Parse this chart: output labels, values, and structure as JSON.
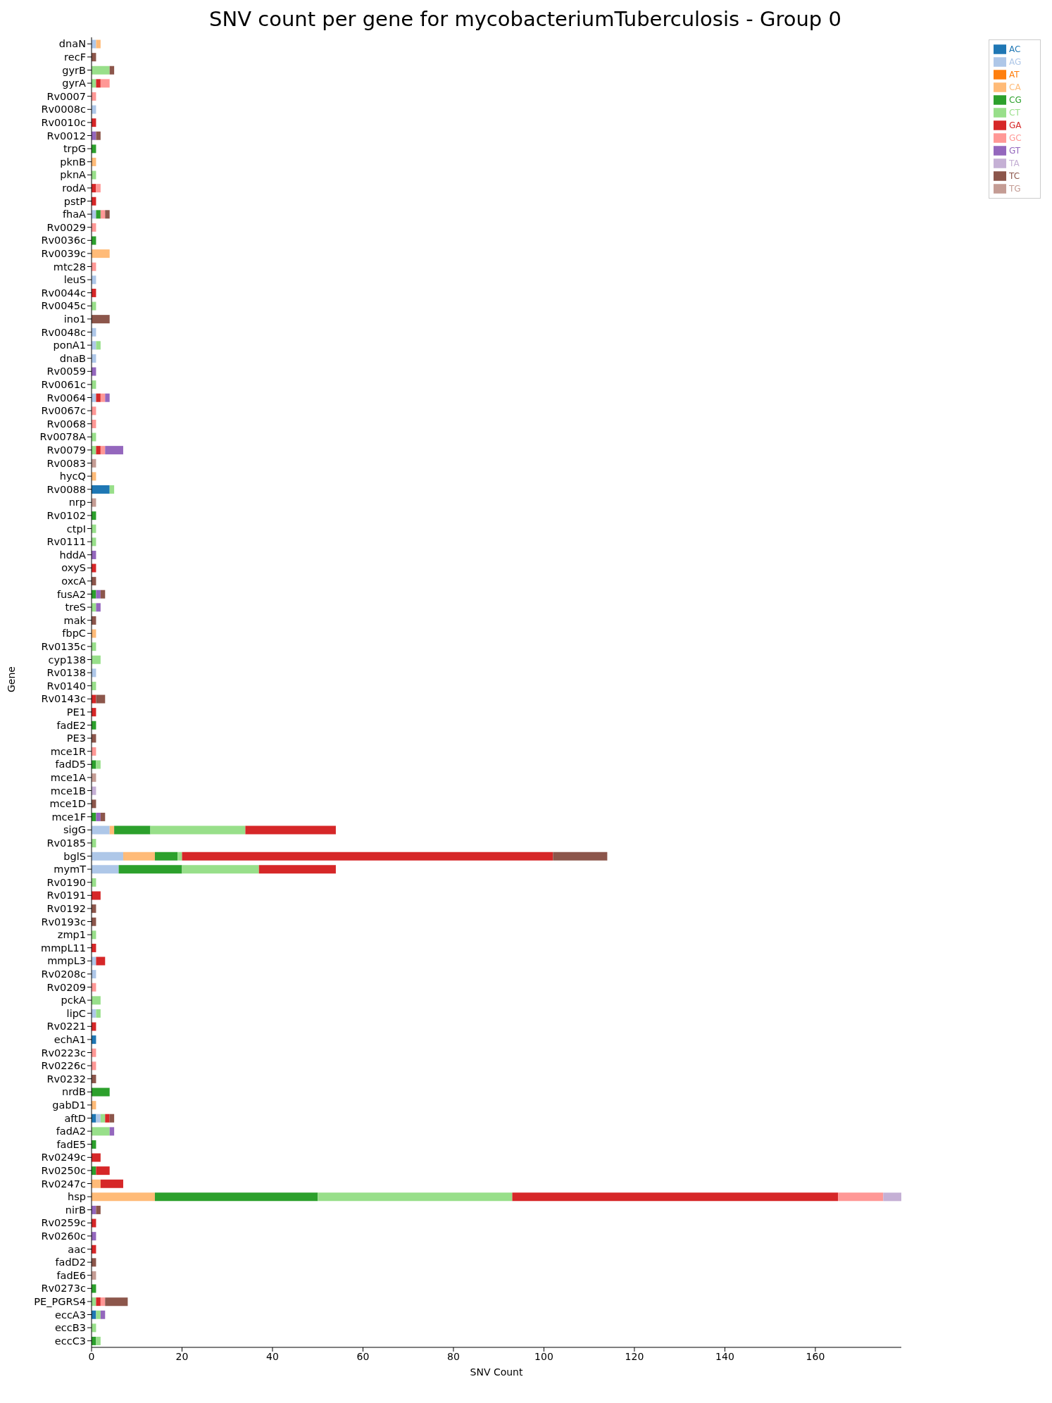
{
  "chart_data": {
    "type": "bar",
    "orientation": "horizontal",
    "stacked": true,
    "title": "SNV count per gene for mycobacteriumTuberculosis - Group 0",
    "xlabel": "SNV Count",
    "ylabel": "Gene",
    "legend": "top right",
    "xlim": [
      0,
      179
    ],
    "xticks": [
      0,
      20,
      40,
      60,
      80,
      100,
      120,
      140,
      160
    ],
    "categories": [
      "dnaN",
      "recF",
      "gyrB",
      "gyrA",
      "Rv0007",
      "Rv0008c",
      "Rv0010c",
      "Rv0012",
      "trpG",
      "pknB",
      "pknA",
      "rodA",
      "pstP",
      "fhaA",
      "Rv0029",
      "Rv0036c",
      "Rv0039c",
      "mtc28",
      "leuS",
      "Rv0044c",
      "Rv0045c",
      "ino1",
      "Rv0048c",
      "ponA1",
      "dnaB",
      "Rv0059",
      "Rv0061c",
      "Rv0064",
      "Rv0067c",
      "Rv0068",
      "Rv0078A",
      "Rv0079",
      "Rv0083",
      "hycQ",
      "Rv0088",
      "nrp",
      "Rv0102",
      "ctpI",
      "Rv0111",
      "hddA",
      "oxyS",
      "oxcA",
      "fusA2",
      "treS",
      "mak",
      "fbpC",
      "Rv0135c",
      "cyp138",
      "Rv0138",
      "Rv0140",
      "Rv0143c",
      "PE1",
      "fadE2",
      "PE3",
      "mce1R",
      "fadD5",
      "mce1A",
      "mce1B",
      "mce1D",
      "mce1F",
      "sigG",
      "Rv0185",
      "bglS",
      "mymT",
      "Rv0190",
      "Rv0191",
      "Rv0192",
      "Rv0193c",
      "zmp1",
      "mmpL11",
      "mmpL3",
      "Rv0208c",
      "Rv0209",
      "pckA",
      "lipC",
      "Rv0221",
      "echA1",
      "Rv0223c",
      "Rv0226c",
      "Rv0232",
      "nrdB",
      "gabD1",
      "aftD",
      "fadA2",
      "fadE5",
      "Rv0249c",
      "Rv0250c",
      "Rv0247c",
      "hsp",
      "nirB",
      "Rv0259c",
      "Rv0260c",
      "aac",
      "fadD2",
      "fadE6",
      "Rv0273c",
      "PE_PGRS4",
      "eccA3",
      "eccB3",
      "eccC3"
    ],
    "series": [
      {
        "name": "AC",
        "color": "#1f77b4",
        "values": [
          0,
          0,
          0,
          0,
          0,
          0,
          0,
          0,
          0,
          0,
          0,
          0,
          0,
          0,
          0,
          0,
          0,
          0,
          0,
          0,
          0,
          0,
          0,
          0,
          0,
          0,
          0,
          0,
          0,
          0,
          0,
          0,
          0,
          0,
          4,
          0,
          0,
          0,
          0,
          0,
          0,
          0,
          0,
          0,
          0,
          0,
          0,
          0,
          0,
          0,
          0,
          0,
          0,
          0,
          0,
          0,
          0,
          0,
          0,
          0,
          0,
          0,
          0,
          0,
          0,
          0,
          0,
          0,
          0,
          0,
          0,
          0,
          0,
          0,
          0,
          0,
          1,
          0,
          0,
          0,
          0,
          0,
          1,
          0,
          0,
          0,
          0,
          0,
          0,
          0,
          0,
          0,
          0,
          0,
          0,
          0,
          0,
          1,
          0,
          0
        ]
      },
      {
        "name": "AG",
        "color": "#aec7e8",
        "values": [
          1,
          0,
          0,
          0,
          0,
          1,
          0,
          0,
          0,
          0,
          0,
          0,
          0,
          1,
          0,
          0,
          0,
          0,
          1,
          0,
          0,
          0,
          1,
          1,
          1,
          0,
          0,
          1,
          0,
          0,
          0,
          0,
          0,
          0,
          0,
          0,
          0,
          0,
          0,
          0,
          0,
          0,
          0,
          0,
          0,
          0,
          0,
          0,
          1,
          0,
          0,
          0,
          0,
          0,
          0,
          0,
          0,
          0,
          0,
          0,
          4,
          0,
          7,
          6,
          0,
          0,
          0,
          0,
          0,
          0,
          1,
          1,
          0,
          0,
          1,
          0,
          0,
          0,
          0,
          0,
          0,
          0,
          1,
          0,
          0,
          0,
          0,
          0,
          0,
          0,
          0,
          0,
          0,
          0,
          0,
          0,
          0,
          0,
          0,
          0
        ]
      },
      {
        "name": "AT",
        "color": "#ff7f0e",
        "values": [
          0,
          0,
          0,
          0,
          0,
          0,
          0,
          0,
          0,
          0,
          0,
          0,
          0,
          0,
          0,
          0,
          0,
          0,
          0,
          0,
          0,
          0,
          0,
          0,
          0,
          0,
          0,
          0,
          0,
          0,
          0,
          0,
          0,
          0,
          0,
          0,
          0,
          0,
          0,
          0,
          0,
          0,
          0,
          0,
          0,
          0,
          0,
          0,
          0,
          0,
          0,
          0,
          0,
          0,
          0,
          0,
          0,
          0,
          0,
          0,
          0,
          0,
          0,
          0,
          0,
          0,
          0,
          0,
          0,
          0,
          0,
          0,
          0,
          0,
          0,
          0,
          0,
          0,
          0,
          0,
          0,
          0,
          0,
          0,
          0,
          0,
          0,
          0,
          0,
          0,
          0,
          0,
          0,
          0,
          0,
          0,
          0,
          0,
          0,
          0
        ]
      },
      {
        "name": "CA",
        "color": "#ffbb78",
        "values": [
          1,
          0,
          0,
          0,
          0,
          0,
          0,
          0,
          0,
          1,
          0,
          0,
          0,
          0,
          0,
          0,
          4,
          0,
          0,
          0,
          0,
          0,
          0,
          0,
          0,
          0,
          0,
          0,
          0,
          0,
          0,
          0,
          0,
          1,
          0,
          0,
          0,
          0,
          0,
          0,
          0,
          0,
          0,
          0,
          0,
          1,
          0,
          0,
          0,
          0,
          0,
          0,
          0,
          0,
          0,
          0,
          0,
          0,
          0,
          0,
          1,
          0,
          7,
          0,
          0,
          0,
          0,
          0,
          0,
          0,
          0,
          0,
          0,
          0,
          0,
          0,
          0,
          0,
          0,
          0,
          0,
          1,
          0,
          0,
          0,
          0,
          0,
          2,
          14,
          0,
          0,
          0,
          0,
          0,
          0,
          0,
          0,
          0,
          0,
          0
        ]
      },
      {
        "name": "CG",
        "color": "#2ca02c",
        "values": [
          0,
          0,
          0,
          0,
          0,
          0,
          0,
          0,
          1,
          0,
          0,
          0,
          0,
          1,
          0,
          1,
          0,
          0,
          0,
          0,
          0,
          0,
          0,
          0,
          0,
          0,
          0,
          0,
          0,
          0,
          0,
          0,
          0,
          0,
          0,
          0,
          1,
          0,
          0,
          0,
          0,
          0,
          1,
          0,
          0,
          0,
          0,
          0,
          0,
          0,
          0,
          0,
          1,
          0,
          0,
          1,
          0,
          0,
          0,
          1,
          8,
          0,
          5,
          14,
          0,
          0,
          0,
          0,
          0,
          0,
          0,
          0,
          0,
          0,
          0,
          0,
          0,
          0,
          0,
          0,
          4,
          0,
          0,
          0,
          1,
          0,
          1,
          0,
          36,
          0,
          0,
          0,
          0,
          0,
          0,
          1,
          0,
          0,
          0,
          1
        ]
      },
      {
        "name": "CT",
        "color": "#98df8a",
        "values": [
          0,
          0,
          4,
          1,
          0,
          0,
          0,
          0,
          0,
          0,
          1,
          0,
          0,
          0,
          0,
          0,
          0,
          0,
          0,
          0,
          1,
          0,
          0,
          1,
          0,
          0,
          1,
          0,
          0,
          0,
          1,
          1,
          0,
          0,
          1,
          0,
          0,
          1,
          1,
          0,
          0,
          0,
          0,
          1,
          0,
          0,
          1,
          2,
          0,
          1,
          0,
          0,
          0,
          0,
          0,
          1,
          0,
          0,
          0,
          0,
          21,
          1,
          1,
          17,
          1,
          0,
          0,
          0,
          1,
          0,
          0,
          0,
          0,
          2,
          1,
          0,
          0,
          0,
          0,
          0,
          0,
          0,
          1,
          4,
          0,
          0,
          0,
          0,
          43,
          0,
          0,
          0,
          0,
          0,
          0,
          0,
          1,
          1,
          1,
          1
        ]
      },
      {
        "name": "GA",
        "color": "#d62728",
        "values": [
          0,
          0,
          0,
          1,
          0,
          0,
          1,
          0,
          0,
          0,
          0,
          1,
          1,
          0,
          0,
          0,
          0,
          0,
          0,
          1,
          0,
          0,
          0,
          0,
          0,
          0,
          0,
          1,
          0,
          0,
          0,
          1,
          0,
          0,
          0,
          0,
          0,
          0,
          0,
          0,
          1,
          0,
          0,
          0,
          0,
          0,
          0,
          0,
          0,
          0,
          1,
          1,
          0,
          0,
          0,
          0,
          0,
          0,
          0,
          0,
          20,
          0,
          82,
          17,
          0,
          2,
          0,
          0,
          0,
          1,
          2,
          0,
          0,
          0,
          0,
          1,
          0,
          0,
          0,
          0,
          0,
          0,
          1,
          0,
          0,
          2,
          3,
          5,
          72,
          0,
          1,
          0,
          1,
          0,
          0,
          0,
          1,
          0,
          0,
          0
        ]
      },
      {
        "name": "GC",
        "color": "#ff9896",
        "values": [
          0,
          0,
          0,
          2,
          1,
          0,
          0,
          0,
          0,
          0,
          0,
          1,
          0,
          1,
          1,
          0,
          0,
          1,
          0,
          0,
          0,
          0,
          0,
          0,
          0,
          0,
          0,
          1,
          1,
          1,
          0,
          1,
          0,
          0,
          0,
          0,
          0,
          0,
          0,
          0,
          0,
          0,
          0,
          0,
          0,
          0,
          0,
          0,
          0,
          0,
          0,
          0,
          0,
          0,
          1,
          0,
          0,
          0,
          0,
          0,
          0,
          0,
          0,
          0,
          0,
          0,
          0,
          0,
          0,
          0,
          0,
          0,
          1,
          0,
          0,
          0,
          0,
          1,
          1,
          0,
          0,
          0,
          0,
          0,
          0,
          0,
          0,
          0,
          10,
          0,
          0,
          0,
          0,
          0,
          0,
          0,
          1,
          0,
          0,
          0
        ]
      },
      {
        "name": "GT",
        "color": "#9467bd",
        "values": [
          0,
          0,
          0,
          0,
          0,
          0,
          0,
          1,
          0,
          0,
          0,
          0,
          0,
          0,
          0,
          0,
          0,
          0,
          0,
          0,
          0,
          0,
          0,
          0,
          0,
          1,
          0,
          1,
          0,
          0,
          0,
          4,
          0,
          0,
          0,
          0,
          0,
          0,
          0,
          1,
          0,
          0,
          1,
          1,
          0,
          0,
          0,
          0,
          0,
          0,
          0,
          0,
          0,
          0,
          0,
          0,
          0,
          0,
          0,
          1,
          0,
          0,
          0,
          0,
          0,
          0,
          0,
          0,
          0,
          0,
          0,
          0,
          0,
          0,
          0,
          0,
          0,
          0,
          0,
          0,
          0,
          0,
          0,
          1,
          0,
          0,
          0,
          0,
          0,
          1,
          0,
          1,
          0,
          0,
          0,
          0,
          0,
          1,
          0,
          0
        ]
      },
      {
        "name": "TA",
        "color": "#c5b0d5",
        "values": [
          0,
          0,
          0,
          0,
          0,
          0,
          0,
          0,
          0,
          0,
          0,
          0,
          0,
          0,
          0,
          0,
          0,
          0,
          0,
          0,
          0,
          0,
          0,
          0,
          0,
          0,
          0,
          0,
          0,
          0,
          0,
          0,
          0,
          0,
          0,
          0,
          0,
          0,
          0,
          0,
          0,
          0,
          0,
          0,
          0,
          0,
          0,
          0,
          0,
          0,
          0,
          0,
          0,
          0,
          0,
          0,
          0,
          1,
          0,
          0,
          0,
          0,
          0,
          0,
          0,
          0,
          0,
          0,
          0,
          0,
          0,
          0,
          0,
          0,
          0,
          0,
          0,
          0,
          0,
          0,
          0,
          0,
          0,
          0,
          0,
          0,
          0,
          0,
          4,
          0,
          0,
          0,
          0,
          0,
          0,
          0,
          0,
          0,
          0,
          0
        ]
      },
      {
        "name": "TC",
        "color": "#8c564b",
        "values": [
          0,
          1,
          1,
          0,
          0,
          0,
          0,
          1,
          0,
          0,
          0,
          0,
          0,
          1,
          0,
          0,
          0,
          0,
          0,
          0,
          0,
          4,
          0,
          0,
          0,
          0,
          0,
          0,
          0,
          0,
          0,
          0,
          0,
          0,
          0,
          0,
          0,
          0,
          0,
          0,
          0,
          1,
          1,
          0,
          1,
          0,
          0,
          0,
          0,
          0,
          2,
          0,
          0,
          1,
          0,
          0,
          0,
          0,
          1,
          1,
          0,
          0,
          12,
          0,
          0,
          0,
          1,
          1,
          0,
          0,
          0,
          0,
          0,
          0,
          0,
          0,
          0,
          0,
          0,
          1,
          0,
          0,
          1,
          0,
          0,
          0,
          0,
          0,
          0,
          1,
          0,
          0,
          0,
          1,
          0,
          0,
          5,
          0,
          0,
          0
        ]
      },
      {
        "name": "TG",
        "color": "#c49c94",
        "values": [
          0,
          0,
          0,
          0,
          0,
          0,
          0,
          0,
          0,
          0,
          0,
          0,
          0,
          0,
          0,
          0,
          0,
          0,
          0,
          0,
          0,
          0,
          0,
          0,
          0,
          0,
          0,
          0,
          0,
          0,
          0,
          0,
          1,
          0,
          0,
          1,
          0,
          0,
          0,
          0,
          0,
          0,
          0,
          0,
          0,
          0,
          0,
          0,
          0,
          0,
          0,
          0,
          0,
          0,
          0,
          0,
          1,
          0,
          0,
          0,
          0,
          0,
          0,
          0,
          0,
          0,
          0,
          0,
          0,
          0,
          0,
          0,
          0,
          0,
          0,
          0,
          0,
          0,
          0,
          0,
          0,
          0,
          0,
          0,
          0,
          0,
          0,
          0,
          0,
          0,
          0,
          0,
          0,
          0,
          1,
          0,
          0,
          0,
          0,
          0
        ]
      }
    ]
  }
}
